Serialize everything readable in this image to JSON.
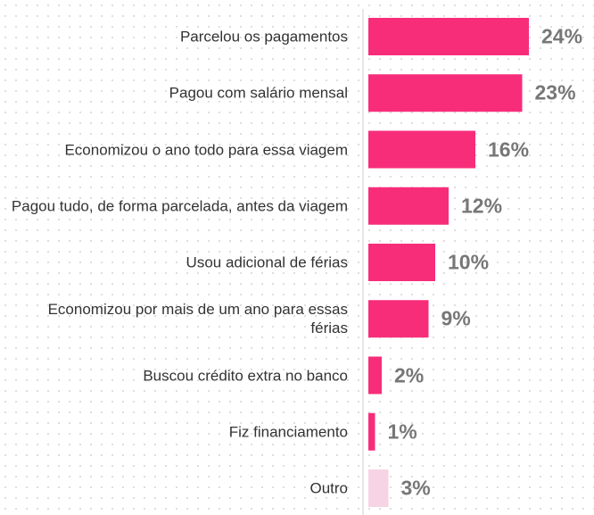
{
  "chart_data": {
    "type": "bar",
    "orientation": "horizontal",
    "categories": [
      "Parcelou os pagamentos",
      "Pagou com salário mensal",
      "Economizou o ano todo para essa viagem",
      "Pagou tudo, de forma parcelada, antes da viagem",
      "Usou adicional de férias",
      "Economizou por mais de um ano para essas férias",
      "Buscou crédito extra no banco",
      "Fiz financiamento",
      "Outro"
    ],
    "values": [
      24,
      23,
      16,
      12,
      10,
      9,
      2,
      1,
      3
    ],
    "value_labels": [
      "24%",
      "23%",
      "16%",
      "12%",
      "10%",
      "9%",
      "2%",
      "1%",
      "3%"
    ],
    "colors": [
      "#f72d7a",
      "#f72d7a",
      "#f72d7a",
      "#f72d7a",
      "#f72d7a",
      "#f72d7a",
      "#f72d7a",
      "#f72d7a",
      "#f7d3e6"
    ],
    "xlim": [
      0,
      25
    ]
  }
}
